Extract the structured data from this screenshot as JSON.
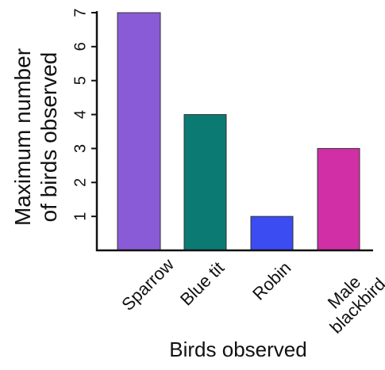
{
  "chart_data": {
    "type": "bar",
    "categories": [
      "Sparrow",
      "Blue tit",
      "Robin",
      "Male blackbird"
    ],
    "values": [
      7,
      4,
      1,
      3
    ],
    "colors": [
      "#8a5bd6",
      "#0b7a72",
      "#3a4cf2",
      "#d02fa6"
    ],
    "ylim": [
      0,
      7
    ],
    "yticks": [
      1,
      2,
      3,
      4,
      5,
      6,
      7
    ],
    "ylabel": "Maximum number of birds observed",
    "xlabel": "Birds observed"
  }
}
